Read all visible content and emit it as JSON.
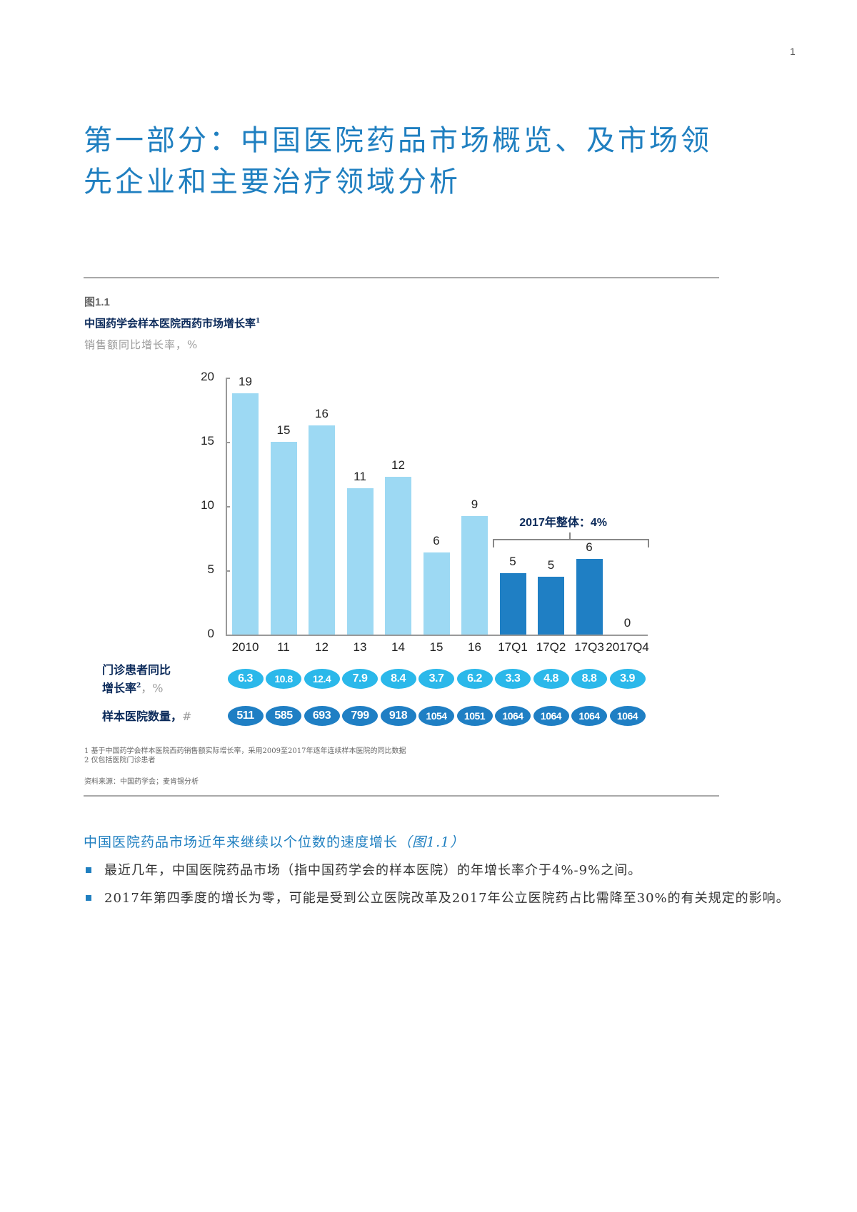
{
  "page": {
    "number": "1",
    "title_line1": "第一部分：中国医院药品市场概览、及市场领",
    "title_line2": "先企业和主要治疗领域分析"
  },
  "figure": {
    "number": "图1.1",
    "title": "中国药学会样本医院西药市场增长率",
    "title_sup": "1",
    "unit": "销售额同比增长率，%",
    "bracket_label": "2017年整体：4%",
    "row1_label_line1": "门诊患者同比",
    "row1_label_line2": "增长率",
    "row1_label_sup": "2",
    "row1_label_unit": "，%",
    "row2_label": "样本医院数量，",
    "row2_label_unit": "#",
    "footnote1": "1 基于中国药学会样本医院西药销售额实际增长率，采用2009至2017年逐年连续样本医院的同比数据",
    "footnote2": "2 仅包括医院门诊患者",
    "source": "资料来源：中国药学会；麦肯锡分析"
  },
  "chart_data": {
    "type": "bar",
    "title": "中国药学会样本医院西药市场增长率",
    "xlabel": "",
    "ylabel": "销售额同比增长率，%",
    "ylim": [
      0,
      20
    ],
    "yticks": [
      0,
      5,
      10,
      15,
      20
    ],
    "grid": false,
    "categories": [
      "2010",
      "11",
      "12",
      "13",
      "14",
      "15",
      "16",
      "17Q1",
      "17Q2",
      "17Q3",
      "2017Q4"
    ],
    "values": [
      18.8,
      15.0,
      16.3,
      11.4,
      12.3,
      6.4,
      9.2,
      4.8,
      4.5,
      5.9,
      0
    ],
    "data_labels": [
      "19",
      "15",
      "16",
      "11",
      "12",
      "6",
      "9",
      "5",
      "5",
      "6",
      "0"
    ],
    "bar_colors": [
      "#9dd9f3",
      "#9dd9f3",
      "#9dd9f3",
      "#9dd9f3",
      "#9dd9f3",
      "#9dd9f3",
      "#9dd9f3",
      "#1f7fc4",
      "#1f7fc4",
      "#1f7fc4",
      "#1f7fc4"
    ],
    "annotations": [
      {
        "text": "2017年整体：4%",
        "spans": [
          "17Q1",
          "2017Q4"
        ]
      }
    ],
    "extra_rows": [
      {
        "name": "门诊患者同比增长率，%",
        "values": [
          "6.3",
          "10.8",
          "12.4",
          "7.9",
          "8.4",
          "3.7",
          "6.2",
          "3.3",
          "4.8",
          "8.8",
          "3.9"
        ],
        "color": "#2bb8ea"
      },
      {
        "name": "样本医院数量，#",
        "values": [
          "511",
          "585",
          "693",
          "799",
          "918",
          "1054",
          "1051",
          "1064",
          "1064",
          "1064",
          "1064"
        ],
        "color": "#1f7fc4"
      }
    ]
  },
  "text": {
    "heading": "中国医院药品市场近年来继续以个位数的速度增长",
    "heading_ref": "（图1.1）",
    "bullet1": "最近几年，中国医院药品市场（指中国药学会的样本医院）的年增长率介于4%-9%之间。",
    "bullet2": "2017年第四季度的增长为零，可能是受到公立医院改革及2017年公立医院药占比需降至30%的有关规定的影响。"
  }
}
